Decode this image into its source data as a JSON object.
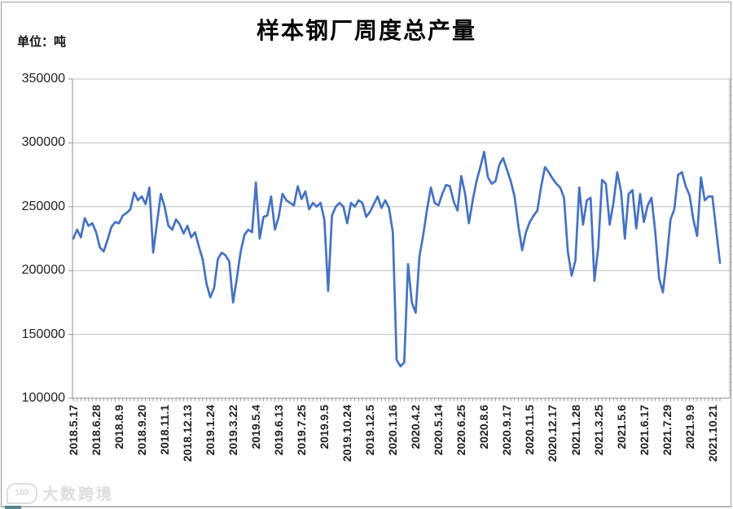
{
  "header": {
    "title": "样本钢厂周度总产量",
    "unit_label": "单位：吨"
  },
  "watermark": {
    "logo_text": "100",
    "text": "大数跨境"
  },
  "chart_data": {
    "type": "line",
    "title": "样本钢厂周度总产量",
    "ylabel": "单位：吨",
    "ylim": [
      100000,
      350000
    ],
    "y_ticks": [
      350000,
      300000,
      250000,
      200000,
      150000,
      100000
    ],
    "grid": true,
    "legend": "none",
    "series_name": "周度总产量",
    "series_color": "#4472C4",
    "label_every": 6,
    "x_tick_labels": [
      "2018.5.17",
      "2018.6.28",
      "2018.8.9",
      "2018.9.20",
      "2018.11.1",
      "2018.12.13",
      "2019.1.24",
      "2019.3.22",
      "2019.5.4",
      "2019.6.13",
      "2019.7.25",
      "2019.9.5",
      "2019.10.24",
      "2019.12.5",
      "2020.1.16",
      "2020.4.2",
      "2020.5.14",
      "2020.6.25",
      "2020.8.6",
      "2020.9.17",
      "2020.11.5",
      "2020.12.17",
      "2021.1.28",
      "2021.3.25",
      "2021.5.6",
      "2021.6.17",
      "2021.7.29",
      "2021.9.9",
      "2021.10.21"
    ],
    "values": [
      225000,
      232000,
      226000,
      241000,
      235000,
      237000,
      230000,
      218000,
      215000,
      224000,
      234000,
      238000,
      237000,
      243000,
      245000,
      248000,
      261000,
      255000,
      258000,
      252000,
      265000,
      214000,
      237000,
      260000,
      250000,
      235000,
      232000,
      240000,
      236000,
      229000,
      235000,
      226000,
      230000,
      219000,
      209000,
      190000,
      179000,
      186000,
      209000,
      214000,
      212000,
      207000,
      175000,
      194000,
      215000,
      228000,
      232000,
      230000,
      269000,
      225000,
      242000,
      243000,
      258000,
      232000,
      242000,
      260000,
      255000,
      253000,
      251000,
      266000,
      256000,
      262000,
      248000,
      253000,
      250000,
      253000,
      240000,
      184000,
      243000,
      250000,
      253000,
      250000,
      237000,
      253000,
      250000,
      255000,
      253000,
      242000,
      246000,
      252000,
      258000,
      249000,
      255000,
      249000,
      230000,
      130000,
      125000,
      128000,
      205000,
      175000,
      167000,
      211000,
      228000,
      248000,
      265000,
      253000,
      251000,
      260000,
      267000,
      266000,
      254000,
      247000,
      274000,
      260000,
      237000,
      255000,
      270000,
      281000,
      293000,
      273000,
      268000,
      270000,
      283000,
      288000,
      279000,
      270000,
      258000,
      235000,
      216000,
      230000,
      238000,
      243000,
      247000,
      266000,
      281000,
      277000,
      272000,
      268000,
      265000,
      257000,
      215000,
      196000,
      208000,
      265000,
      236000,
      255000,
      257000,
      192000,
      218000,
      271000,
      268000,
      236000,
      253000,
      277000,
      262000,
      225000,
      260000,
      263000,
      233000,
      260000,
      238000,
      251000,
      257000,
      230000,
      194000,
      183000,
      209000,
      240000,
      248000,
      275000,
      277000,
      266000,
      259000,
      240000,
      227000,
      273000,
      255000,
      258000,
      258000,
      232000,
      206000
    ]
  }
}
